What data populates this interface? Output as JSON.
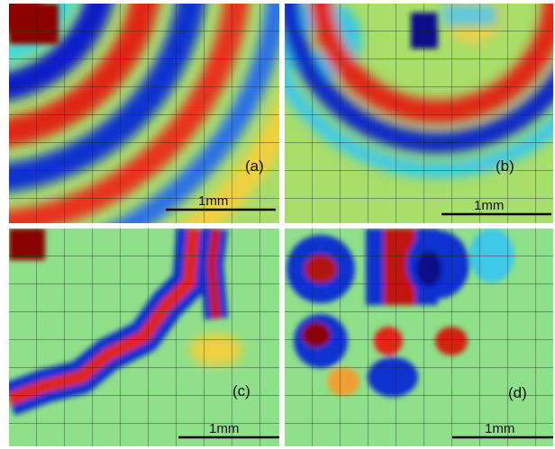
{
  "panels": [
    {
      "label": "(a)",
      "scale": "1mm"
    },
    {
      "label": "(b)",
      "scale": "1mm"
    },
    {
      "label": "(c)",
      "scale": "1mm"
    },
    {
      "label": "(d)",
      "scale": "1mm"
    }
  ]
}
